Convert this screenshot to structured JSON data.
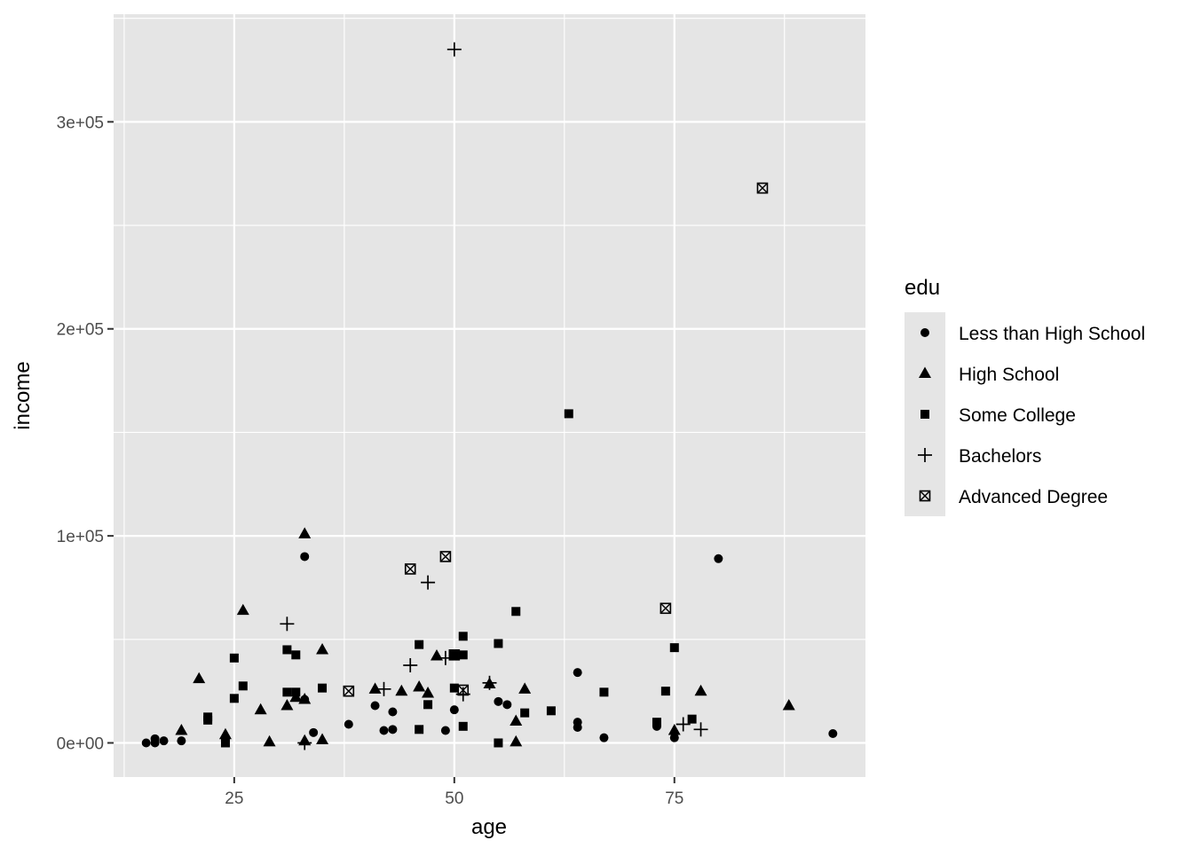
{
  "chart_data": {
    "type": "scatter",
    "title": "",
    "xlabel": "age",
    "ylabel": "income",
    "xlim": [
      11.3,
      96.7
    ],
    "ylim": [
      -16500,
      352000
    ],
    "x_ticks": [
      {
        "value": 25,
        "label": "25"
      },
      {
        "value": 50,
        "label": "50"
      },
      {
        "value": 75,
        "label": "75"
      }
    ],
    "y_ticks": [
      {
        "value": 0,
        "label": "0e+00"
      },
      {
        "value": 100000,
        "label": "1e+05"
      },
      {
        "value": 200000,
        "label": "2e+05"
      },
      {
        "value": 300000,
        "label": "3e+05"
      }
    ],
    "grid": true,
    "panel_background": "#e5e5e5",
    "grid_color": "#ffffff",
    "point_color": "#000000",
    "legend": {
      "title": "edu",
      "position": "right"
    },
    "series": [
      {
        "name": "Less than High School",
        "shape": "circle",
        "points": [
          [
            15,
            0
          ],
          [
            16,
            0
          ],
          [
            16,
            2000
          ],
          [
            17,
            1000
          ],
          [
            19,
            1000
          ],
          [
            33,
            21000
          ],
          [
            33,
            90000
          ],
          [
            34,
            5000
          ],
          [
            38,
            9000
          ],
          [
            41,
            18000
          ],
          [
            42,
            6000
          ],
          [
            43,
            6500
          ],
          [
            43,
            15000
          ],
          [
            49,
            6000
          ],
          [
            50,
            16000
          ],
          [
            55,
            20000
          ],
          [
            56,
            18500
          ],
          [
            64,
            34000
          ],
          [
            64,
            10000
          ],
          [
            64,
            7500
          ],
          [
            67,
            2500
          ],
          [
            73,
            8000
          ],
          [
            75,
            2500
          ],
          [
            80,
            89000
          ],
          [
            93,
            4500
          ]
        ]
      },
      {
        "name": "High School",
        "shape": "triangle",
        "points": [
          [
            19,
            6000
          ],
          [
            21,
            31000
          ],
          [
            24,
            4000
          ],
          [
            26,
            64000
          ],
          [
            28,
            16000
          ],
          [
            29,
            500
          ],
          [
            31,
            18000
          ],
          [
            32,
            22000
          ],
          [
            33,
            101000
          ],
          [
            33,
            21000
          ],
          [
            33,
            1000
          ],
          [
            35,
            45000
          ],
          [
            35,
            1500
          ],
          [
            41,
            26000
          ],
          [
            44,
            25000
          ],
          [
            46,
            27000
          ],
          [
            47,
            24000
          ],
          [
            48,
            42000
          ],
          [
            54,
            28500
          ],
          [
            57,
            10500
          ],
          [
            57,
            500
          ],
          [
            58,
            26000
          ],
          [
            75,
            6000
          ],
          [
            78,
            25000
          ],
          [
            88,
            18000
          ]
        ]
      },
      {
        "name": "Some College",
        "shape": "square",
        "points": [
          [
            22,
            11000
          ],
          [
            22,
            12500
          ],
          [
            24,
            0
          ],
          [
            25,
            41000
          ],
          [
            25,
            21500
          ],
          [
            26,
            27500
          ],
          [
            31,
            45000
          ],
          [
            31,
            24500
          ],
          [
            32,
            42500
          ],
          [
            32,
            24500
          ],
          [
            35,
            26500
          ],
          [
            46,
            47500
          ],
          [
            46,
            6500
          ],
          [
            47,
            18500
          ],
          [
            50,
            42500
          ],
          [
            50,
            26500
          ],
          [
            51,
            51500
          ],
          [
            51,
            42500
          ],
          [
            51,
            8000
          ],
          [
            55,
            48000
          ],
          [
            55,
            0
          ],
          [
            57,
            63500
          ],
          [
            58,
            14500
          ],
          [
            61,
            15500
          ],
          [
            63,
            159000
          ],
          [
            67,
            24500
          ],
          [
            73,
            10000
          ],
          [
            74,
            25000
          ],
          [
            75,
            46000
          ],
          [
            77,
            11500
          ]
        ]
      },
      {
        "name": "Bachelors",
        "shape": "plus",
        "points": [
          [
            31,
            57500
          ],
          [
            33,
            0
          ],
          [
            42,
            26000
          ],
          [
            45,
            37500
          ],
          [
            47,
            77500
          ],
          [
            49,
            41000
          ],
          [
            50,
            335000
          ],
          [
            51,
            23500
          ],
          [
            54,
            29000
          ],
          [
            76,
            9000
          ],
          [
            78,
            6500
          ]
        ]
      },
      {
        "name": "Advanced Degree",
        "shape": "boxx",
        "points": [
          [
            38,
            25000
          ],
          [
            45,
            84000
          ],
          [
            49,
            90000
          ],
          [
            50,
            42500
          ],
          [
            51,
            25500
          ],
          [
            74,
            65000
          ],
          [
            85,
            268000
          ]
        ]
      }
    ]
  }
}
